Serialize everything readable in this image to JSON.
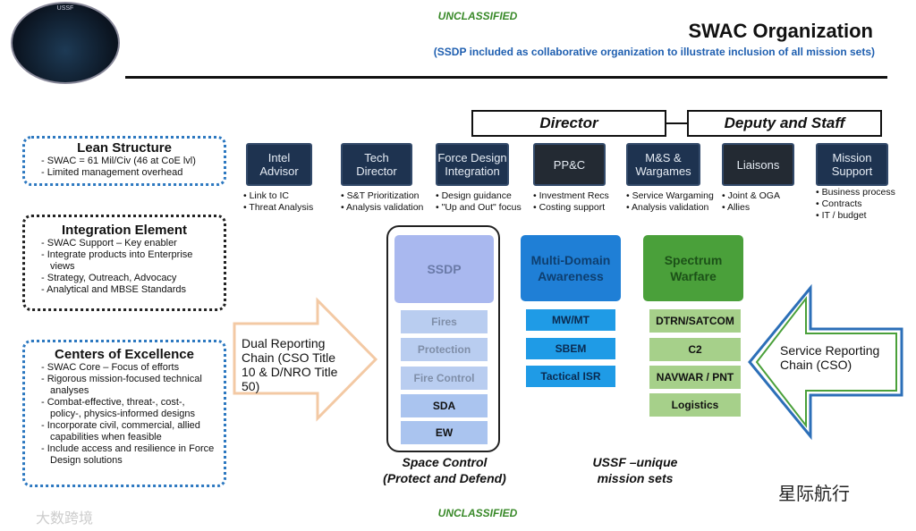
{
  "classification": "UNCLASSIFIED",
  "header": {
    "title": "SWAC Organization",
    "subtitle": "(SSDP included as collaborative organization to illustrate inclusion of all mission sets)"
  },
  "logo": {
    "text": "USSF"
  },
  "leadership": {
    "director": "Director",
    "deputy": "Deputy and Staff"
  },
  "roles": [
    {
      "name": "Intel Advisor",
      "bullets": [
        "Link to IC",
        "Threat Analysis"
      ]
    },
    {
      "name": "Tech Director",
      "bullets": [
        "S&T Prioritization",
        "Analysis validation"
      ]
    },
    {
      "name": "Force Design Integration",
      "bullets": [
        "Design guidance",
        "\"Up and Out\" focus"
      ]
    },
    {
      "name": "PP&C",
      "bullets": [
        "Investment Recs",
        "Costing support"
      ]
    },
    {
      "name": "M&S & Wargames",
      "bullets": [
        "Service Wargaming",
        "Analysis validation"
      ]
    },
    {
      "name": "Liaisons",
      "bullets": [
        "Joint & OGA",
        "Allies"
      ]
    },
    {
      "name": "Mission Support",
      "bullets": [
        "Business process",
        "Contracts",
        "IT / budget"
      ]
    }
  ],
  "left": [
    {
      "title": "Lean Structure",
      "items": [
        "SWAC = 61 Mil/Civ (46 at CoE lvl)",
        "Limited management overhead"
      ]
    },
    {
      "title": "Integration Element",
      "items": [
        "SWAC Support – Key enabler",
        "Integrate products into Enterprise views",
        "Strategy, Outreach, Advocacy",
        "Analytical and MBSE Standards"
      ]
    },
    {
      "title": "Centers of Excellence",
      "items": [
        "SWAC Core – Focus of efforts",
        "Rigorous mission-focused technical analyses",
        "Combat-effective, threat-, cost-, policy-, physics-informed designs",
        "Incorporate civil, commercial, allied capabilities when feasible",
        "Include access and resilience in Force Design solutions"
      ]
    }
  ],
  "arrows": {
    "dual": "Dual Reporting Chain (CSO Title 10 & D/NRO Title 50)",
    "service": "Service Reporting Chain (CSO)"
  },
  "columns": {
    "ssdp": {
      "title": "SSDP",
      "items": [
        "Fires",
        "Protection",
        "Fire Control",
        "SDA",
        "EW"
      ],
      "color": "#a9b8ef"
    },
    "mda": {
      "title": "Multi-Domain Awareness",
      "items": [
        "MW/MT",
        "SBEM",
        "Tactical ISR"
      ],
      "color": "#1f7fd6"
    },
    "sw": {
      "title": "Spectrum Warfare",
      "items": [
        "DTRN/SATCOM",
        "C2",
        "NAVWAR / PNT",
        "Logistics"
      ],
      "color": "#4aa03a"
    }
  },
  "captions": {
    "space_control": "Space Control",
    "space_control_sub": "(Protect and Defend)",
    "ussf": "USSF –unique",
    "ussf_sub": "mission sets"
  },
  "watermarks": {
    "right": "星际航行",
    "left": "大数跨境"
  }
}
